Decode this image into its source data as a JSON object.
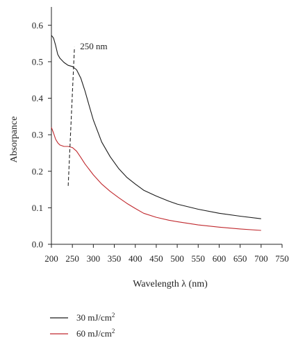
{
  "chart_data": {
    "type": "line",
    "xlabel": "Wavelength λ (nm)",
    "ylabel": "Absorpance",
    "xlim": [
      200,
      750
    ],
    "ylim": [
      0.0,
      0.65
    ],
    "x_ticks": [
      200,
      250,
      300,
      350,
      400,
      450,
      500,
      550,
      600,
      650,
      700,
      750
    ],
    "y_ticks": [
      0.0,
      0.1,
      0.2,
      0.3,
      0.4,
      0.5,
      0.6
    ],
    "y_tick_labels": [
      "0.0",
      "0.1",
      "0.2",
      "0.3",
      "0.4",
      "0.5",
      "0.6"
    ],
    "grid": false,
    "legend_placement": "bottom-left, below plot",
    "annotation": {
      "text": "250 nm",
      "line_style": "dashed",
      "line_from": [
        240,
        0.16
      ],
      "line_to": [
        255,
        0.54
      ],
      "anchor": [
        260,
        0.54
      ]
    },
    "series": [
      {
        "name": "30 mJ/cm",
        "unit_superscript": "2",
        "color": "#1a1a1a",
        "x": [
          200,
          205,
          210,
          215,
          220,
          230,
          240,
          250,
          260,
          270,
          280,
          290,
          300,
          320,
          340,
          360,
          380,
          400,
          420,
          450,
          480,
          500,
          550,
          600,
          650,
          700
        ],
        "y": [
          0.572,
          0.565,
          0.545,
          0.52,
          0.51,
          0.498,
          0.49,
          0.487,
          0.478,
          0.455,
          0.42,
          0.38,
          0.34,
          0.28,
          0.24,
          0.208,
          0.183,
          0.165,
          0.148,
          0.132,
          0.118,
          0.11,
          0.096,
          0.085,
          0.077,
          0.07
        ]
      },
      {
        "name": "60 mJ/cm",
        "unit_superscript": "2",
        "color": "#c0282d",
        "x": [
          200,
          205,
          210,
          215,
          220,
          230,
          240,
          250,
          260,
          270,
          280,
          300,
          320,
          340,
          360,
          380,
          400,
          420,
          450,
          480,
          500,
          550,
          600,
          650,
          700
        ],
        "y": [
          0.32,
          0.305,
          0.288,
          0.278,
          0.272,
          0.268,
          0.268,
          0.265,
          0.255,
          0.238,
          0.22,
          0.19,
          0.165,
          0.145,
          0.128,
          0.112,
          0.098,
          0.085,
          0.074,
          0.066,
          0.062,
          0.053,
          0.047,
          0.042,
          0.038
        ]
      }
    ]
  }
}
